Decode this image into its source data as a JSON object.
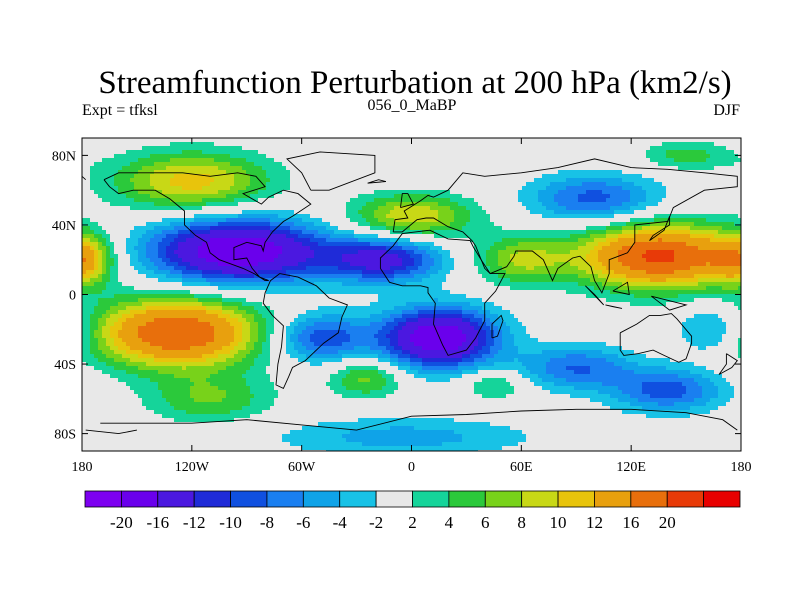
{
  "chart_data": {
    "type": "heatmap",
    "title": "Streamfunction Perturbation at 200 hPa (km2/s)",
    "left_string": "Expt = tfksl",
    "center_string": "056_0_MaBP",
    "right_string": "DJF",
    "x_range": [
      -180,
      180
    ],
    "y_range": [
      -90,
      90
    ],
    "x_ticks": [
      {
        "value": -180,
        "label": "180"
      },
      {
        "value": -120,
        "label": "120W"
      },
      {
        "value": -60,
        "label": "60W"
      },
      {
        "value": 0,
        "label": "0"
      },
      {
        "value": 60,
        "label": "60E"
      },
      {
        "value": 120,
        "label": "120E"
      },
      {
        "value": 180,
        "label": "180"
      }
    ],
    "y_ticks": [
      {
        "value": 80,
        "label": "80N"
      },
      {
        "value": 40,
        "label": "40N"
      },
      {
        "value": 0,
        "label": "0"
      },
      {
        "value": -40,
        "label": "40S"
      },
      {
        "value": -80,
        "label": "80S"
      }
    ],
    "levels": [
      -20,
      -16,
      -12,
      -10,
      -8,
      -6,
      -4,
      -2,
      2,
      4,
      6,
      8,
      10,
      12,
      16,
      20
    ],
    "level_labels": [
      "-20",
      "-16",
      "-12",
      "-10",
      "-8",
      "-6",
      "-4",
      "-2",
      "2",
      "4",
      "6",
      "8",
      "10",
      "12",
      "16",
      "20"
    ],
    "colors": [
      "#7d00f0",
      "#6a00ec",
      "#4b18e0",
      "#1f2bd8",
      "#1050e0",
      "#1a7ff0",
      "#0fa3e8",
      "#18c2e6",
      "#e8e8e8",
      "#15d49a",
      "#2bc93b",
      "#78d21a",
      "#c8d816",
      "#e8c40c",
      "#e8a00e",
      "#e86f0c",
      "#e83a08",
      "#e80000"
    ],
    "features": [
      {
        "lon": -120,
        "lat": 65,
        "amp": 11,
        "slon": 30,
        "slat": 12
      },
      {
        "lon": -95,
        "lat": 25,
        "amp": -20,
        "slon": 34,
        "slat": 13
      },
      {
        "lon": -15,
        "lat": 20,
        "amp": -13,
        "slon": 22,
        "slat": 9
      },
      {
        "lon": 0,
        "lat": 45,
        "amp": 10,
        "slon": 24,
        "slat": 9
      },
      {
        "lon": 135,
        "lat": 22,
        "amp": 21,
        "slon": 30,
        "slat": 13
      },
      {
        "lon": 100,
        "lat": 55,
        "amp": -9,
        "slon": 25,
        "slat": 10
      },
      {
        "lon": -128,
        "lat": -22,
        "amp": 20,
        "slon": 32,
        "slat": 14
      },
      {
        "lon": 15,
        "lat": -25,
        "amp": -20,
        "slon": 22,
        "slat": 12
      },
      {
        "lon": -50,
        "lat": -25,
        "amp": -10,
        "slon": 18,
        "slat": 10
      },
      {
        "lon": 90,
        "lat": -42,
        "amp": -8,
        "slon": 22,
        "slat": 9
      },
      {
        "lon": 140,
        "lat": -55,
        "amp": -9,
        "slon": 22,
        "slat": 9
      },
      {
        "lon": -25,
        "lat": -48,
        "amp": 7,
        "slon": 14,
        "slat": 8
      },
      {
        "lon": -110,
        "lat": -60,
        "amp": 6,
        "slon": 24,
        "slat": 10
      },
      {
        "lon": 45,
        "lat": -52,
        "amp": 5,
        "slon": 12,
        "slat": 6
      },
      {
        "lon": 165,
        "lat": -20,
        "amp": -6,
        "slon": 14,
        "slat": 10
      },
      {
        "lon": 60,
        "lat": 20,
        "amp": 8,
        "slon": 18,
        "slat": 10
      },
      {
        "lon": -175,
        "lat": 20,
        "amp": 6,
        "slon": 10,
        "slat": 10
      },
      {
        "lon": 175,
        "lat": 20,
        "amp": 6,
        "slon": 10,
        "slat": 10
      },
      {
        "lon": -5,
        "lat": -82,
        "amp": -5,
        "slon": 50,
        "slat": 8
      },
      {
        "lon": 150,
        "lat": 80,
        "amp": 5,
        "slon": 18,
        "slat": 6
      }
    ],
    "coastlines": [
      [
        [
          -168,
          66
        ],
        [
          -160,
          70
        ],
        [
          -140,
          70
        ],
        [
          -125,
          70
        ],
        [
          -110,
          68
        ],
        [
          -95,
          70
        ],
        [
          -85,
          68
        ],
        [
          -80,
          62
        ],
        [
          -92,
          58
        ],
        [
          -82,
          52
        ],
        [
          -78,
          56
        ],
        [
          -70,
          60
        ],
        [
          -62,
          58
        ],
        [
          -55,
          52
        ],
        [
          -65,
          45
        ],
        [
          -70,
          42
        ],
        [
          -76,
          36
        ],
        [
          -80,
          30
        ],
        [
          -81,
          25
        ],
        [
          -82,
          28
        ],
        [
          -90,
          30
        ],
        [
          -97,
          27
        ],
        [
          -97,
          20
        ],
        [
          -90,
          21
        ],
        [
          -87,
          15
        ],
        [
          -83,
          10
        ],
        [
          -78,
          8
        ],
        [
          -80,
          8
        ],
        [
          -86,
          12
        ],
        [
          -92,
          15
        ],
        [
          -105,
          20
        ],
        [
          -110,
          24
        ],
        [
          -112,
          30
        ],
        [
          -118,
          34
        ],
        [
          -124,
          40
        ],
        [
          -124,
          48
        ],
        [
          -132,
          55
        ],
        [
          -140,
          60
        ],
        [
          -152,
          60
        ],
        [
          -160,
          58
        ],
        [
          -165,
          62
        ],
        [
          -168,
          66
        ]
      ],
      [
        [
          -77,
          8
        ],
        [
          -72,
          12
        ],
        [
          -62,
          10
        ],
        [
          -52,
          5
        ],
        [
          -45,
          -2
        ],
        [
          -35,
          -6
        ],
        [
          -38,
          -13
        ],
        [
          -40,
          -22
        ],
        [
          -48,
          -28
        ],
        [
          -55,
          -35
        ],
        [
          -58,
          -38
        ],
        [
          -65,
          -42
        ],
        [
          -67,
          -47
        ],
        [
          -70,
          -54
        ],
        [
          -74,
          -52
        ],
        [
          -73,
          -40
        ],
        [
          -71,
          -30
        ],
        [
          -70,
          -18
        ],
        [
          -76,
          -12
        ],
        [
          -81,
          -5
        ],
        [
          -80,
          1
        ],
        [
          -77,
          8
        ]
      ],
      [
        [
          -55,
          60
        ],
        [
          -45,
          60
        ],
        [
          -20,
          70
        ],
        [
          -20,
          80
        ],
        [
          -50,
          82
        ],
        [
          -68,
          78
        ],
        [
          -60,
          70
        ],
        [
          -55,
          60
        ]
      ],
      [
        [
          -10,
          36
        ],
        [
          -9,
          43
        ],
        [
          -2,
          44
        ],
        [
          -4,
          48
        ],
        [
          5,
          54
        ],
        [
          9,
          57
        ],
        [
          12,
          56
        ],
        [
          20,
          60
        ],
        [
          28,
          70
        ],
        [
          40,
          68
        ],
        [
          60,
          70
        ],
        [
          80,
          73
        ],
        [
          100,
          78
        ],
        [
          120,
          73
        ],
        [
          140,
          72
        ],
        [
          160,
          70
        ],
        [
          178,
          68
        ],
        [
          178,
          62
        ],
        [
          160,
          60
        ],
        [
          143,
          50
        ],
        [
          140,
          42
        ],
        [
          122,
          40
        ],
        [
          122,
          30
        ],
        [
          118,
          24
        ],
        [
          108,
          20
        ],
        [
          108,
          12
        ],
        [
          104,
          1
        ],
        [
          100,
          8
        ],
        [
          98,
          16
        ],
        [
          92,
          22
        ],
        [
          88,
          21
        ],
        [
          80,
          15
        ],
        [
          77,
          8
        ],
        [
          72,
          20
        ],
        [
          66,
          25
        ],
        [
          57,
          25
        ],
        [
          56,
          22
        ],
        [
          52,
          16
        ],
        [
          43,
          12
        ],
        [
          40,
          15
        ],
        [
          35,
          28
        ],
        [
          33,
          31
        ],
        [
          28,
          36
        ],
        [
          20,
          39
        ],
        [
          12,
          44
        ],
        [
          8,
          44
        ],
        [
          3,
          43
        ],
        [
          -5,
          36
        ],
        [
          -10,
          36
        ]
      ],
      [
        [
          -17,
          15
        ],
        [
          -17,
          21
        ],
        [
          -10,
          28
        ],
        [
          -5,
          35
        ],
        [
          10,
          37
        ],
        [
          20,
          32
        ],
        [
          32,
          31
        ],
        [
          34,
          27
        ],
        [
          38,
          20
        ],
        [
          43,
          12
        ],
        [
          51,
          12
        ],
        [
          46,
          2
        ],
        [
          40,
          -5
        ],
        [
          40,
          -15
        ],
        [
          35,
          -25
        ],
        [
          30,
          -32
        ],
        [
          20,
          -35
        ],
        [
          17,
          -29
        ],
        [
          12,
          -17
        ],
        [
          13,
          -5
        ],
        [
          9,
          1
        ],
        [
          9,
          4
        ],
        [
          5,
          5
        ],
        [
          -5,
          5
        ],
        [
          -12,
          7
        ],
        [
          -17,
          15
        ]
      ],
      [
        [
          114,
          -22
        ],
        [
          114,
          -32
        ],
        [
          116,
          -35
        ],
        [
          124,
          -34
        ],
        [
          132,
          -32
        ],
        [
          138,
          -35
        ],
        [
          146,
          -39
        ],
        [
          150,
          -37
        ],
        [
          153,
          -28
        ],
        [
          153,
          -24
        ],
        [
          145,
          -14
        ],
        [
          142,
          -11
        ],
        [
          136,
          -12
        ],
        [
          130,
          -12
        ],
        [
          123,
          -17
        ],
        [
          114,
          -22
        ]
      ],
      [
        [
          -170,
          -74
        ],
        [
          -120,
          -74
        ],
        [
          -90,
          -72
        ],
        [
          -60,
          -75
        ],
        [
          -30,
          -78
        ],
        [
          0,
          -70
        ],
        [
          30,
          -69
        ],
        [
          60,
          -67
        ],
        [
          90,
          -66
        ],
        [
          120,
          -66
        ],
        [
          150,
          -68
        ],
        [
          170,
          -72
        ],
        [
          178,
          -78
        ]
      ],
      [
        [
          -178,
          -78
        ],
        [
          -160,
          -80
        ],
        [
          -150,
          -78
        ]
      ],
      [
        [
          172,
          -34
        ],
        [
          178,
          -38
        ],
        [
          175,
          -42
        ],
        [
          168,
          -46
        ],
        [
          172,
          -40
        ],
        [
          172,
          -34
        ]
      ],
      [
        [
          44,
          -25
        ],
        [
          47,
          -24
        ],
        [
          50,
          -15
        ],
        [
          49,
          -12
        ],
        [
          44,
          -17
        ],
        [
          44,
          -25
        ]
      ],
      [
        [
          130,
          31
        ],
        [
          132,
          34
        ],
        [
          141,
          40
        ],
        [
          141,
          45
        ],
        [
          138,
          37
        ],
        [
          130,
          31
        ]
      ],
      [
        [
          -6,
          50
        ],
        [
          -5,
          58
        ],
        [
          -2,
          58
        ],
        [
          1,
          52
        ],
        [
          -6,
          50
        ]
      ],
      [
        [
          -24,
          64
        ],
        [
          -14,
          65
        ],
        [
          -18,
          66
        ],
        [
          -24,
          64
        ]
      ],
      [
        [
          95,
          5
        ],
        [
          105,
          -6
        ],
        [
          100,
          0
        ],
        [
          95,
          5
        ]
      ],
      [
        [
          110,
          -7
        ],
        [
          115,
          -8
        ],
        [
          106,
          -6
        ],
        [
          110,
          -7
        ]
      ],
      [
        [
          110,
          2
        ],
        [
          118,
          7
        ],
        [
          119,
          0
        ],
        [
          110,
          2
        ]
      ],
      [
        [
          131,
          -1
        ],
        [
          150,
          -6
        ],
        [
          141,
          -9
        ],
        [
          131,
          -1
        ]
      ],
      [
        [
          -180,
          68
        ],
        [
          -178,
          66
        ]
      ]
    ]
  }
}
